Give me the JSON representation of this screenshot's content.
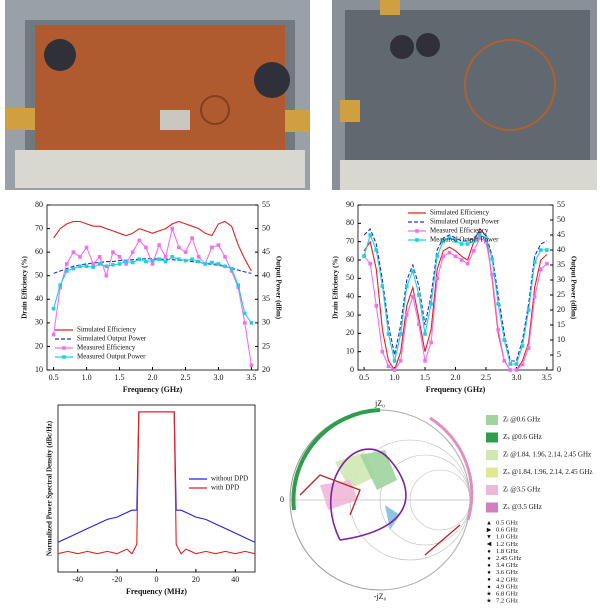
{
  "chart_data": [
    {
      "type": "line",
      "xlabel": "Frequency (GHz)",
      "ylabel": "Drain Efficiency (%)",
      "y2label": "Output Power (dBm)",
      "legend": "lower left",
      "x": [
        0.5,
        0.6,
        0.7,
        0.8,
        0.9,
        1.0,
        1.1,
        1.2,
        1.3,
        1.4,
        1.5,
        1.6,
        1.7,
        1.8,
        1.9,
        2.0,
        2.1,
        2.2,
        2.3,
        2.4,
        2.5,
        2.6,
        2.7,
        2.8,
        2.9,
        3.0,
        3.1,
        3.2,
        3.3,
        3.4,
        3.5
      ],
      "xlim": [
        0.4,
        3.6
      ],
      "xticks": [
        0.5,
        {
          "value": 1,
          "label": "1.0"
        },
        1.5,
        {
          "value": 2,
          "label": "2.0"
        },
        2.5,
        {
          "value": 3,
          "label": "3.0"
        },
        3.5
      ],
      "ylim": [
        10,
        80
      ],
      "yticks": [
        10,
        20,
        30,
        40,
        50,
        60,
        70,
        80
      ],
      "y2lim": [
        20,
        55
      ],
      "y2ticks": [
        20,
        25,
        30,
        35,
        40,
        45,
        50,
        55
      ],
      "series": [
        {
          "name": "Simulated Efficiency",
          "color": "#e02020",
          "dash": false,
          "marker": false,
          "values": [
            66,
            70,
            72,
            73,
            73,
            72,
            71,
            71,
            70,
            69,
            68,
            67,
            68,
            70,
            69,
            68,
            69,
            70,
            72,
            73,
            72,
            71,
            70,
            68,
            67,
            72,
            73,
            71,
            63,
            57,
            52
          ]
        },
        {
          "name": "Simulated Output Power",
          "color": "#2030c0",
          "dash": true,
          "marker": false,
          "axis": "y2",
          "values": [
            40.5,
            41,
            41.5,
            42,
            42.3,
            42.5,
            42.7,
            42.8,
            43,
            43,
            43.2,
            43.3,
            43.4,
            43.5,
            43.6,
            43.6,
            43.5,
            43.5,
            43.4,
            43.3,
            43.2,
            43,
            42.8,
            42.6,
            42.4,
            42.2,
            42,
            41.6,
            41.2,
            40.8,
            40.5
          ]
        },
        {
          "name": "Measured Efficiency",
          "color": "#f070f0",
          "dash": false,
          "marker": true,
          "values": [
            25,
            45,
            55,
            60,
            58,
            62,
            55,
            58,
            50,
            60,
            58,
            55,
            60,
            65,
            62,
            55,
            63,
            58,
            70,
            62,
            60,
            66,
            58,
            55,
            62,
            63,
            58,
            52,
            45,
            30,
            12
          ]
        },
        {
          "name": "Measured Output Power",
          "color": "#20d0e0",
          "dash": false,
          "marker": true,
          "axis": "y2",
          "values": [
            33,
            38,
            41,
            41.5,
            42,
            42,
            41.8,
            42.5,
            42,
            42.3,
            42.5,
            43,
            42.8,
            43.5,
            43,
            43.2,
            43.5,
            43,
            44,
            43.5,
            43.2,
            43.5,
            43,
            42.5,
            42.8,
            42.5,
            42,
            41.5,
            38,
            32,
            30
          ]
        }
      ]
    },
    {
      "type": "line",
      "xlabel": "Frequency (GHz)",
      "ylabel": "Drain Efficiency (%)",
      "y2label": "Output Power (dBm)",
      "legend": "upper center",
      "x": [
        0.5,
        0.6,
        0.7,
        0.8,
        0.9,
        1.0,
        1.1,
        1.2,
        1.3,
        1.4,
        1.5,
        1.6,
        1.7,
        1.8,
        1.9,
        2.0,
        2.1,
        2.2,
        2.3,
        2.4,
        2.5,
        2.6,
        2.7,
        2.8,
        2.9,
        3.0,
        3.1,
        3.2,
        3.3,
        3.4,
        3.5
      ],
      "xlim": [
        0.4,
        3.6
      ],
      "xticks": [
        0.5,
        {
          "value": 1,
          "label": "1.0"
        },
        1.5,
        {
          "value": 2,
          "label": "2.0"
        },
        2.5,
        {
          "value": 3,
          "label": "3.0"
        },
        3.5
      ],
      "ylim": [
        0,
        90
      ],
      "yticks": [
        0,
        10,
        20,
        30,
        40,
        50,
        60,
        70,
        80,
        90
      ],
      "y2lim": [
        0,
        55
      ],
      "y2ticks": [
        0,
        5,
        10,
        15,
        20,
        25,
        30,
        35,
        40,
        45,
        50,
        55
      ],
      "series": [
        {
          "name": "Simulated Efficiency",
          "color": "#e02020",
          "dash": false,
          "marker": false,
          "values": [
            65,
            70,
            55,
            22,
            5,
            0,
            10,
            35,
            45,
            28,
            10,
            22,
            55,
            65,
            67,
            65,
            62,
            60,
            70,
            77,
            73,
            50,
            20,
            5,
            0,
            0,
            5,
            15,
            45,
            60,
            63
          ]
        },
        {
          "name": "Simulated Output Power",
          "color": "#2030c0",
          "dash": true,
          "marker": false,
          "axis": "y2",
          "values": [
            45,
            47,
            42,
            30,
            15,
            5,
            15,
            30,
            35,
            28,
            15,
            25,
            40,
            44,
            45,
            44,
            43,
            43,
            44,
            46,
            45,
            38,
            25,
            12,
            3,
            3,
            10,
            22,
            38,
            42,
            43
          ]
        },
        {
          "name": "Measured Efficiency",
          "color": "#f070f0",
          "dash": false,
          "marker": true,
          "values": [
            62,
            58,
            35,
            10,
            2,
            0,
            5,
            30,
            40,
            25,
            5,
            15,
            50,
            62,
            64,
            62,
            60,
            58,
            65,
            72,
            70,
            52,
            22,
            5,
            0,
            0,
            3,
            12,
            40,
            55,
            58
          ]
        },
        {
          "name": "Measured Output Power",
          "color": "#20d0e0",
          "dash": false,
          "marker": true,
          "axis": "y2",
          "values": [
            38,
            45,
            40,
            28,
            12,
            3,
            12,
            28,
            33,
            25,
            12,
            22,
            38,
            43,
            44,
            43,
            42,
            42,
            43,
            45,
            44,
            37,
            22,
            10,
            2,
            2,
            8,
            20,
            36,
            40,
            40
          ]
        }
      ]
    },
    {
      "type": "line",
      "xlabel": "Frequency (MHz)",
      "ylabel": "Normalized Power Spectral Density (dBc/Hz)",
      "legend": "upper right",
      "x": [
        -50,
        -45,
        -40,
        -35,
        -30,
        -25,
        -20,
        -17.5,
        -15,
        -12.5,
        -10,
        -9,
        -5,
        0,
        5,
        9,
        10,
        12.5,
        15,
        17.5,
        20,
        25,
        30,
        35,
        40,
        45,
        50
      ],
      "xlim": [
        -50,
        50
      ],
      "xticks": [
        -40,
        -20,
        0,
        20,
        40
      ],
      "ylim": [
        -70,
        3
      ],
      "series": [
        {
          "name": "without DPD",
          "color": "#2020e0",
          "dash": false,
          "marker": false,
          "values": [
            -57,
            -55,
            -53,
            -51,
            -49,
            -47,
            -46,
            -45,
            -44,
            -43,
            -43,
            0,
            0,
            0,
            0,
            0,
            -43,
            -43,
            -44,
            -45,
            -46,
            -47,
            -49,
            -51,
            -53,
            -55,
            -57
          ]
        },
        {
          "name": "with DPD",
          "color": "#e02020",
          "dash": false,
          "marker": false,
          "values": [
            -62,
            -61,
            -62,
            -61,
            -62,
            -61,
            -62,
            -61,
            -60,
            -62,
            -58,
            0,
            0,
            0,
            0,
            0,
            -58,
            -62,
            -60,
            -61,
            -62,
            -61,
            -62,
            -61,
            -62,
            -61,
            -62
          ]
        }
      ]
    },
    {
      "type": "smith",
      "top_label": "jZ₀",
      "bottom_label": "-jZ₀",
      "left_label": "0",
      "regions": [
        "Zₗ @0.6 GHz",
        "Zₛ @0.6 GHz",
        "Zₗ @1.84, 1.96, 2.14, 2.45 GHz",
        "Zₛ @1.84, 1.96, 2.14, 2.45 GHz",
        "Zₗ @3.5 GHz",
        "Zₛ @3.5 GHz"
      ],
      "markers": [
        "0.5 GHz",
        "0.6 GHz",
        "1.0 GHz",
        "1.2 GHz",
        "1.8 GHz",
        "2.45 GHz",
        "3.4 GHz",
        "3.6 GHz",
        "4.2 GHz",
        "4.9 GHz",
        "6.8 GHz",
        "7.2 GHz"
      ]
    }
  ]
}
